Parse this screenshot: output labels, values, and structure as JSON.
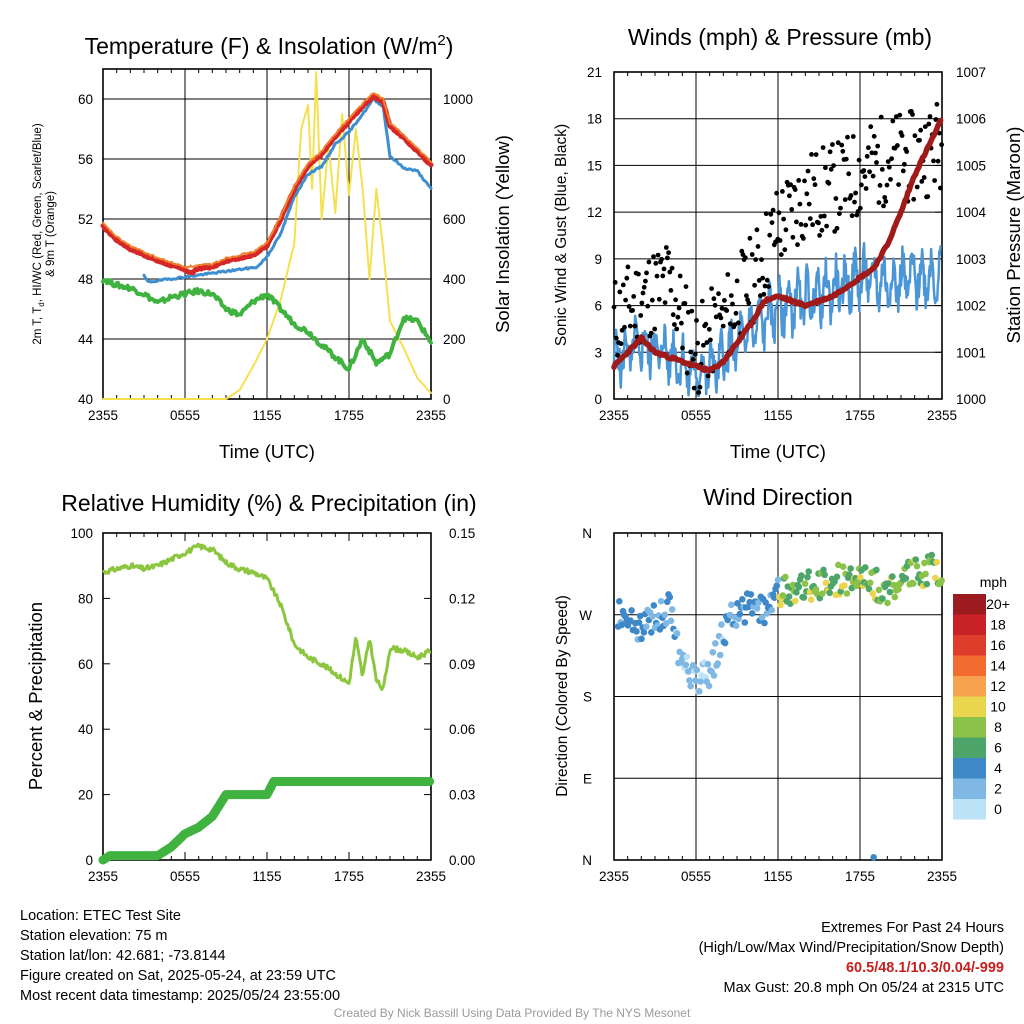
{
  "chart_data": [
    {
      "type": "line",
      "title": "Temperature (F) & Insolation (W/m²)",
      "xlabel": "Time (UTC)",
      "ylabel_lines": [
        "2m T, T",
        "d",
        ", HI/WC (Red, Green, Scarlet/Blue)",
        "& 9m T (Orange)"
      ],
      "ylabel2": "Solar Insolation (Yellow)",
      "x_ticks": [
        "2355",
        "0555",
        "1155",
        "1755",
        "2355"
      ],
      "ylim": [
        40,
        62
      ],
      "y_ticks": [
        40,
        44,
        48,
        52,
        56,
        60
      ],
      "y2lim": [
        0,
        1100
      ],
      "y2_ticks": [
        0,
        200,
        400,
        600,
        800,
        1000
      ],
      "grid": true,
      "series": [
        {
          "color": "#d62728",
          "width": 5,
          "points": [
            [
              0,
              51.5
            ],
            [
              1,
              50.6
            ],
            [
              2,
              50.0
            ],
            [
              3,
              49.6
            ],
            [
              4,
              49.2
            ],
            [
              5,
              48.9
            ],
            [
              6,
              48.6
            ],
            [
              6.5,
              48.4
            ],
            [
              7,
              48.7
            ],
            [
              8,
              48.8
            ],
            [
              9,
              49.2
            ],
            [
              10,
              49.4
            ],
            [
              11,
              49.6
            ],
            [
              12,
              50.2
            ],
            [
              13,
              52.0
            ],
            [
              14,
              54.0
            ],
            [
              15,
              55.5
            ],
            [
              16,
              56.3
            ],
            [
              17,
              57.5
            ],
            [
              18,
              58.5
            ],
            [
              19,
              59.5
            ],
            [
              19.8,
              60.2
            ],
            [
              20.5,
              59.8
            ],
            [
              21,
              58.2
            ],
            [
              22,
              57.4
            ],
            [
              23,
              56.5
            ],
            [
              24,
              55.6
            ]
          ]
        },
        {
          "color": "#f07f2a",
          "width": 2,
          "points": [
            [
              0,
              51.7
            ],
            [
              1,
              50.8
            ],
            [
              2,
              50.2
            ],
            [
              3,
              49.8
            ],
            [
              4,
              49.4
            ],
            [
              5,
              49.1
            ],
            [
              6,
              48.8
            ],
            [
              7,
              48.9
            ],
            [
              8,
              49.0
            ],
            [
              9,
              49.4
            ],
            [
              10,
              49.6
            ],
            [
              11,
              49.8
            ],
            [
              12,
              50.4
            ],
            [
              13,
              52.2
            ],
            [
              14,
              54.2
            ],
            [
              15,
              55.7
            ],
            [
              16,
              56.5
            ],
            [
              17,
              57.7
            ],
            [
              18,
              58.7
            ],
            [
              19,
              59.7
            ],
            [
              19.8,
              60.4
            ],
            [
              20.5,
              60.0
            ],
            [
              21,
              58.4
            ],
            [
              22,
              57.6
            ],
            [
              23,
              56.7
            ],
            [
              24,
              55.8
            ]
          ]
        },
        {
          "color": "#3d8fd0",
          "width": 3,
          "points": [
            [
              3,
              48.2
            ],
            [
              3.3,
              47.8
            ],
            [
              11.3,
              48.8
            ],
            [
              12,
              49.5
            ],
            [
              13,
              51.0
            ],
            [
              14,
              53.5
            ],
            [
              15,
              55.0
            ],
            [
              16,
              55.5
            ],
            [
              17,
              57.0
            ],
            [
              18,
              57.8
            ],
            [
              19,
              59.0
            ],
            [
              19.8,
              60.0
            ],
            [
              20.5,
              59.5
            ],
            [
              21,
              56.2
            ],
            [
              22,
              55.4
            ],
            [
              23,
              55.2
            ],
            [
              24,
              54.0
            ]
          ]
        },
        {
          "color": "#3fb23f",
          "width": 4,
          "points": [
            [
              0,
              48.0
            ],
            [
              1,
              47.6
            ],
            [
              2,
              47.4
            ],
            [
              3,
              47.0
            ],
            [
              4,
              46.4
            ],
            [
              5,
              46.8
            ],
            [
              6,
              47.0
            ],
            [
              7,
              47.2
            ],
            [
              8,
              47.0
            ],
            [
              9,
              46.0
            ],
            [
              10,
              45.6
            ],
            [
              11,
              46.5
            ],
            [
              12,
              47.0
            ],
            [
              13,
              46.0
            ],
            [
              14,
              45.0
            ],
            [
              15,
              44.5
            ],
            [
              16,
              43.6
            ],
            [
              17,
              42.8
            ],
            [
              18,
              42.0
            ],
            [
              18.5,
              43.0
            ],
            [
              19,
              44.0
            ],
            [
              20,
              42.4
            ],
            [
              21,
              43.0
            ],
            [
              22,
              45.4
            ],
            [
              23,
              45.2
            ],
            [
              24,
              43.8
            ]
          ]
        },
        {
          "color": "#f5e04f",
          "width": 2,
          "axis": "y2",
          "points": [
            [
              0,
              0
            ],
            [
              9,
              0
            ],
            [
              10,
              30
            ],
            [
              11,
              110
            ],
            [
              12,
              200
            ],
            [
              13,
              330
            ],
            [
              14,
              520
            ],
            [
              14.5,
              900
            ],
            [
              15,
              980
            ],
            [
              15.3,
              700
            ],
            [
              15.6,
              1090
            ],
            [
              16,
              600
            ],
            [
              16.5,
              850
            ],
            [
              17,
              620
            ],
            [
              17.5,
              950
            ],
            [
              18,
              680
            ],
            [
              18.5,
              900
            ],
            [
              19,
              700
            ],
            [
              19.5,
              400
            ],
            [
              20,
              700
            ],
            [
              20.5,
              500
            ],
            [
              21,
              260
            ],
            [
              22,
              170
            ],
            [
              23,
              70
            ],
            [
              24,
              20
            ]
          ]
        }
      ]
    },
    {
      "type": "scatter",
      "title": "Winds (mph) & Pressure (mb)",
      "xlabel": "Time (UTC)",
      "ylabel": "Sonic Wind & Gust (Blue, Black)",
      "ylabel2": "Station Pressure (Maroon)",
      "x_ticks": [
        "2355",
        "0555",
        "1155",
        "1755",
        "2355"
      ],
      "ylim": [
        0,
        21
      ],
      "y_ticks": [
        0,
        3,
        6,
        9,
        12,
        15,
        18,
        21
      ],
      "y2lim": [
        1000,
        1007
      ],
      "y2_ticks": [
        1000,
        1001,
        1002,
        1003,
        1004,
        1005,
        1006,
        1007
      ],
      "grid": true,
      "wind_trend": [
        [
          0,
          2.5
        ],
        [
          2,
          3.5
        ],
        [
          4,
          3.0
        ],
        [
          6,
          1.5
        ],
        [
          8,
          2.5
        ],
        [
          10,
          4.5
        ],
        [
          12,
          5.8
        ],
        [
          14,
          6.5
        ],
        [
          16,
          7.0
        ],
        [
          18,
          7.8
        ],
        [
          20,
          7.5
        ],
        [
          22,
          7.8
        ],
        [
          24,
          8.0
        ]
      ],
      "gust_trend": [
        [
          0,
          5.0
        ],
        [
          2,
          6.5
        ],
        [
          4,
          7.5
        ],
        [
          6,
          3.0
        ],
        [
          8,
          5.0
        ],
        [
          10,
          7.5
        ],
        [
          12,
          11.0
        ],
        [
          14,
          13.0
        ],
        [
          16,
          13.5
        ],
        [
          18,
          14.5
        ],
        [
          20,
          15.5
        ],
        [
          22,
          15.5
        ],
        [
          24,
          16.5
        ]
      ],
      "pressure": [
        [
          0,
          1000.7
        ],
        [
          1,
          1001.0
        ],
        [
          2,
          1001.3
        ],
        [
          3,
          1001.0
        ],
        [
          4,
          1000.9
        ],
        [
          5,
          1000.8
        ],
        [
          6,
          1000.7
        ],
        [
          7,
          1000.6
        ],
        [
          8,
          1000.8
        ],
        [
          9,
          1001.2
        ],
        [
          10,
          1001.6
        ],
        [
          11,
          1002.1
        ],
        [
          12,
          1002.2
        ],
        [
          13,
          1002.1
        ],
        [
          14,
          1002.0
        ],
        [
          15,
          1002.1
        ],
        [
          16,
          1002.2
        ],
        [
          17,
          1002.4
        ],
        [
          18,
          1002.6
        ],
        [
          19,
          1002.8
        ],
        [
          20,
          1003.3
        ],
        [
          21,
          1004.0
        ],
        [
          22,
          1004.8
        ],
        [
          23,
          1005.4
        ],
        [
          24,
          1006.0
        ]
      ]
    },
    {
      "type": "line",
      "title": "Relative Humidity (%) & Precipitation (in)",
      "ylabel": "Percent & Precipitation",
      "x_ticks": [
        "2355",
        "0555",
        "1155",
        "1755",
        "2355"
      ],
      "ylim": [
        0,
        100
      ],
      "y_ticks": [
        0,
        20,
        40,
        60,
        80,
        100
      ],
      "y2lim": [
        0,
        0.15
      ],
      "y2_ticks": [
        "0.00",
        "0.03",
        "0.06",
        "0.09",
        "0.12",
        "0.15"
      ],
      "grid": false,
      "series": [
        {
          "color": "#8cc63f",
          "width": 3,
          "points": [
            [
              0,
              88
            ],
            [
              1,
              89
            ],
            [
              2,
              90
            ],
            [
              3,
              89
            ],
            [
              4,
              90
            ],
            [
              5,
              92
            ],
            [
              6,
              94
            ],
            [
              7,
              96
            ],
            [
              8,
              95
            ],
            [
              9,
              91
            ],
            [
              10,
              89
            ],
            [
              11,
              88
            ],
            [
              12,
              86
            ],
            [
              13,
              78
            ],
            [
              14,
              66
            ],
            [
              15,
              62
            ],
            [
              16,
              60
            ],
            [
              17,
              57
            ],
            [
              18,
              54
            ],
            [
              18.5,
              68
            ],
            [
              19,
              56
            ],
            [
              19.5,
              68
            ],
            [
              20,
              55
            ],
            [
              20.5,
              52
            ],
            [
              21,
              65
            ],
            [
              22,
              64
            ],
            [
              23,
              62
            ],
            [
              24,
              64
            ]
          ]
        },
        {
          "color": "#3fb23f",
          "width": 9,
          "axis": "y2",
          "points": [
            [
              0,
              0.0
            ],
            [
              0.5,
              0.002
            ],
            [
              4,
              0.002
            ],
            [
              5,
              0.006
            ],
            [
              6,
              0.012
            ],
            [
              7,
              0.015
            ],
            [
              8,
              0.02
            ],
            [
              9,
              0.03
            ],
            [
              11,
              0.03
            ],
            [
              12,
              0.03
            ],
            [
              12.5,
              0.036
            ],
            [
              15,
              0.036
            ],
            [
              24,
              0.036
            ]
          ]
        }
      ]
    },
    {
      "type": "scatter",
      "title": "Wind Direction",
      "ylabel": "Direction (Colored By Speed)",
      "x_ticks": [
        "2355",
        "0555",
        "1155",
        "1755",
        "2355"
      ],
      "y_ticks": [
        "N",
        "E",
        "S",
        "W",
        "N"
      ],
      "grid": true,
      "legend_title": "mph",
      "legend_labels": [
        "20+",
        "18",
        "16",
        "14",
        "12",
        "10",
        "8",
        "6",
        "4",
        "2",
        "0"
      ],
      "legend_colors": [
        "#9b1b1f",
        "#c82226",
        "#de3d2c",
        "#f26b2f",
        "#f7a24f",
        "#ead54f",
        "#8bc34a",
        "#4ea56a",
        "#3e88c8",
        "#7fb8e4",
        "#bde3f6"
      ],
      "dir_trend": [
        [
          0,
          275
        ],
        [
          1,
          262
        ],
        [
          2,
          255
        ],
        [
          3,
          265
        ],
        [
          4,
          278
        ],
        [
          5,
          215
        ],
        [
          6,
          200
        ],
        [
          7,
          205
        ],
        [
          8,
          250
        ],
        [
          9,
          275
        ],
        [
          10,
          280
        ],
        [
          11,
          272
        ],
        [
          12,
          295
        ],
        [
          13,
          295
        ],
        [
          14,
          305
        ],
        [
          15,
          300
        ],
        [
          16,
          310
        ],
        [
          17,
          305
        ],
        [
          18,
          320
        ],
        [
          19,
          305
        ],
        [
          20,
          295
        ],
        [
          21,
          310
        ],
        [
          22,
          315
        ],
        [
          23,
          320
        ],
        [
          24,
          320
        ]
      ],
      "outlier": [
        19,
        3
      ]
    }
  ],
  "info": {
    "location": "Location: ETEC Test Site",
    "elevation": "Station elevation: 75 m",
    "latlon": "Station lat/lon: 42.681; -73.8144",
    "created": "Figure created on Sat, 2025-05-24, at 23:59 UTC",
    "recent": "Most recent data timestamp: 2025/05/24 23:55:00",
    "extremes_title": "Extremes For Past 24 Hours",
    "extremes_subtitle": "(High/Low/Max Wind/Precipitation/Snow Depth)",
    "extremes_values": "60.5/48.1/10.3/0.04/-999",
    "max_gust": "Max Gust: 20.8 mph On 05/24 at 2315 UTC",
    "credit": "Created By Nick Bassill Using Data Provided By The NYS Mesonet"
  }
}
